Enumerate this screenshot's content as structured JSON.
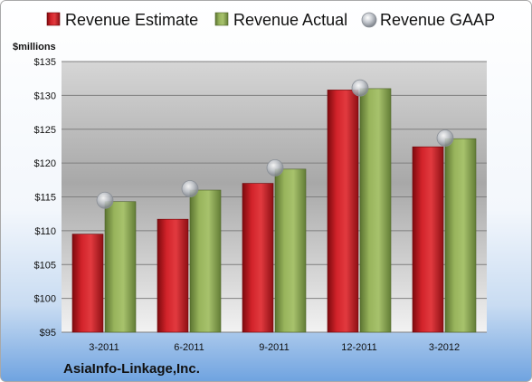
{
  "chart_data": {
    "type": "bar",
    "units_label": "$millions",
    "company": "AsiaInfo-Linkage,Inc.",
    "categories": [
      "3-2011",
      "6-2011",
      "9-2011",
      "12-2011",
      "3-2012"
    ],
    "series": [
      {
        "name": "Revenue Estimate",
        "type": "bar",
        "color": "#c8161d",
        "values": [
          109.5,
          111.7,
          117.0,
          130.8,
          122.4
        ]
      },
      {
        "name": "Revenue Actual",
        "type": "bar",
        "color": "#8faa52",
        "values": [
          114.3,
          116.0,
          119.1,
          131.0,
          123.6
        ]
      },
      {
        "name": "Revenue GAAP",
        "type": "marker",
        "color": "#b8bcc4",
        "values": [
          114.5,
          116.2,
          119.3,
          131.1,
          123.7
        ]
      }
    ],
    "ylim": [
      95,
      135
    ],
    "yticks": [
      "$95",
      "$100",
      "$105",
      "$110",
      "$115",
      "$120",
      "$125",
      "$130",
      "$135"
    ],
    "grid": true,
    "legend_position": "top"
  }
}
